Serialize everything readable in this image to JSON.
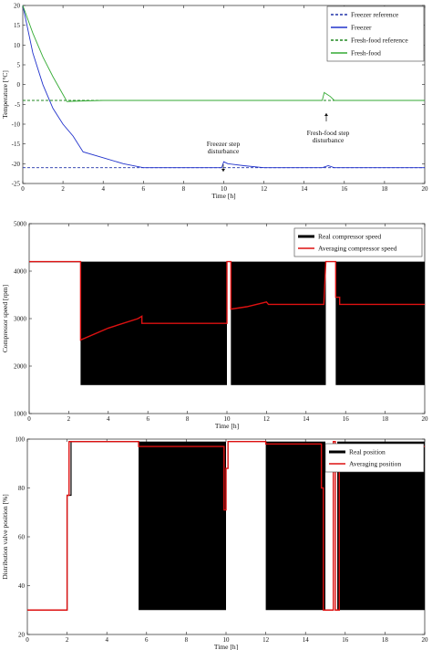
{
  "chart_data": [
    {
      "type": "line",
      "xlabel": "Time [h]",
      "ylabel": "Temperature [°C]",
      "xlim": [
        0,
        20
      ],
      "ylim": [
        -25,
        20
      ],
      "xticks": [
        "0",
        "2",
        "4",
        "6",
        "8",
        "10",
        "12",
        "14",
        "16",
        "18",
        "20"
      ],
      "yticks": [
        "20",
        "15",
        "10",
        "5",
        "0",
        "-5",
        "-10",
        "-15",
        "-20",
        "-25"
      ],
      "legend_position": "top-right",
      "series": [
        {
          "name": "Freezer reference",
          "color": "#2233aa",
          "dash": true,
          "x": [
            0,
            20
          ],
          "y": [
            -21,
            -21
          ]
        },
        {
          "name": "Freezer",
          "color": "#2233cc",
          "dash": false,
          "x": [
            0,
            0.5,
            1,
            1.5,
            2,
            2.5,
            3,
            4,
            5,
            6,
            9.9,
            10,
            10.2,
            11,
            12,
            14.9,
            15.2,
            15.5,
            16,
            20
          ],
          "y": [
            20,
            8,
            0,
            -6,
            -10,
            -13,
            -17,
            -18.5,
            -20,
            -21,
            -21,
            -19.5,
            -20,
            -20.5,
            -21,
            -21,
            -20.5,
            -21,
            -21,
            -21
          ]
        },
        {
          "name": "Fresh-food reference",
          "color": "#228822",
          "dash": true,
          "x": [
            0,
            20
          ],
          "y": [
            -4,
            -4
          ]
        },
        {
          "name": "Fresh-food",
          "color": "#33aa33",
          "dash": false,
          "x": [
            0,
            0.5,
            1,
            1.5,
            2,
            2.2,
            2.5,
            4,
            8,
            14.9,
            15,
            15.3,
            15.5,
            20
          ],
          "y": [
            20,
            13,
            7,
            2,
            -2.5,
            -4.3,
            -4.2,
            -4,
            -4,
            -4,
            -2,
            -3,
            -4,
            -4
          ]
        }
      ],
      "annotations": [
        {
          "lines": [
            "Freezer step",
            "disturbance"
          ],
          "x": 10,
          "y": -19.5
        },
        {
          "lines": [
            "Fresh-food step",
            "disturbance"
          ],
          "x": 15,
          "y": -2
        }
      ]
    },
    {
      "type": "line",
      "xlabel": "Time [h]",
      "ylabel": "Compressor speed [rpm]",
      "xlim": [
        0,
        20
      ],
      "ylim": [
        1000,
        5000
      ],
      "xticks": [
        "0",
        "2",
        "4",
        "6",
        "8",
        "10",
        "12",
        "14",
        "16",
        "18",
        "20"
      ],
      "yticks": [
        "5000",
        "4000",
        "3000",
        "2000",
        "1000"
      ],
      "legend_position": "top-right",
      "series": [
        {
          "name": "Real compressor speed",
          "color": "#000000",
          "kind": "band",
          "segments": [
            [
              2.6,
              10.0
            ],
            [
              10.2,
              15.0
            ],
            [
              15.5,
              20
            ]
          ],
          "low": 1600,
          "high": 4200,
          "x": [
            0,
            2.6
          ],
          "y": [
            4200,
            4200
          ]
        },
        {
          "name": "Averaging compressor speed",
          "color": "#dd1111",
          "x": [
            0,
            2.6,
            2.6,
            4,
            5.5,
            5.7,
            5.7,
            10.0,
            10.0,
            10.2,
            10.2,
            11,
            12,
            12.1,
            14.9,
            14.9,
            15.0,
            15.0,
            15.5,
            15.5,
            15.7,
            15.7,
            20
          ],
          "y": [
            4200,
            4200,
            2550,
            2800,
            3000,
            3050,
            2900,
            2900,
            4200,
            4200,
            3200,
            3250,
            3350,
            3300,
            3300,
            3300,
            4200,
            4200,
            4200,
            3450,
            3450,
            3300,
            3300
          ]
        }
      ]
    },
    {
      "type": "line",
      "xlabel": "Time [h]",
      "ylabel": "Distribution valve position [%]",
      "xlim": [
        0,
        20
      ],
      "ylim": [
        20,
        100
      ],
      "xticks": [
        "0",
        "2",
        "4",
        "6",
        "8",
        "10",
        "12",
        "14",
        "16",
        "18",
        "20"
      ],
      "yticks": [
        "100",
        "80",
        "60",
        "40",
        "20"
      ],
      "legend_position": "top-right",
      "series": [
        {
          "name": "Real position",
          "color": "#000000",
          "kind": "band",
          "segments": [
            [
              5.6,
              10.0
            ],
            [
              12.0,
              15.0
            ],
            [
              15.6,
              20
            ]
          ],
          "low": 30,
          "high": 99,
          "x": [
            0,
            2.0,
            2.0,
            2.2,
            2.2,
            5.6
          ],
          "y": [
            30,
            30,
            77,
            77,
            99,
            99
          ]
        },
        {
          "name": "Averaging position",
          "color": "#dd1111",
          "x": [
            0,
            2.0,
            2.0,
            2.1,
            2.1,
            5.6,
            5.6,
            9.9,
            9.9,
            10.0,
            10.0,
            10.1,
            10.1,
            12.0,
            12.0,
            14.8,
            14.8,
            14.9,
            14.9,
            15.4,
            15.4,
            15.5,
            15.5,
            15.7,
            15.7,
            20
          ],
          "y": [
            30,
            30,
            77,
            77,
            99,
            99,
            97,
            97,
            71,
            71,
            88,
            88,
            99,
            99,
            98,
            98,
            80,
            80,
            30,
            30,
            99,
            99,
            30,
            30,
            97,
            97
          ]
        }
      ]
    }
  ]
}
